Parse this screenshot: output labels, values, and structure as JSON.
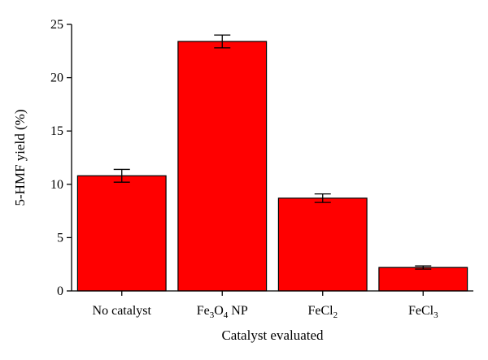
{
  "chart_data": {
    "type": "bar",
    "categories": [
      "No catalyst",
      "Fe3O4 NP",
      "FeCl2",
      "FeCl3"
    ],
    "category_labels": [
      {
        "parts": [
          {
            "t": "No catalyst"
          }
        ]
      },
      {
        "parts": [
          {
            "t": "Fe"
          },
          {
            "t": "3",
            "sub": true
          },
          {
            "t": "O"
          },
          {
            "t": "4",
            "sub": true
          },
          {
            "t": " NP"
          }
        ]
      },
      {
        "parts": [
          {
            "t": "FeCl"
          },
          {
            "t": "2",
            "sub": true
          }
        ]
      },
      {
        "parts": [
          {
            "t": "FeCl"
          },
          {
            "t": "3",
            "sub": true
          }
        ]
      }
    ],
    "values": [
      10.8,
      23.4,
      8.7,
      2.2
    ],
    "errors": [
      0.6,
      0.6,
      0.4,
      0.15
    ],
    "xlabel": "Catalyst evaluated",
    "ylabel": "5-HMF yield (%)",
    "ylim": [
      0,
      25
    ],
    "yticks": [
      0,
      5,
      10,
      15,
      20,
      25
    ],
    "bar_color": "#ff0000",
    "bar_edge_color": "#000000",
    "grid": false
  }
}
